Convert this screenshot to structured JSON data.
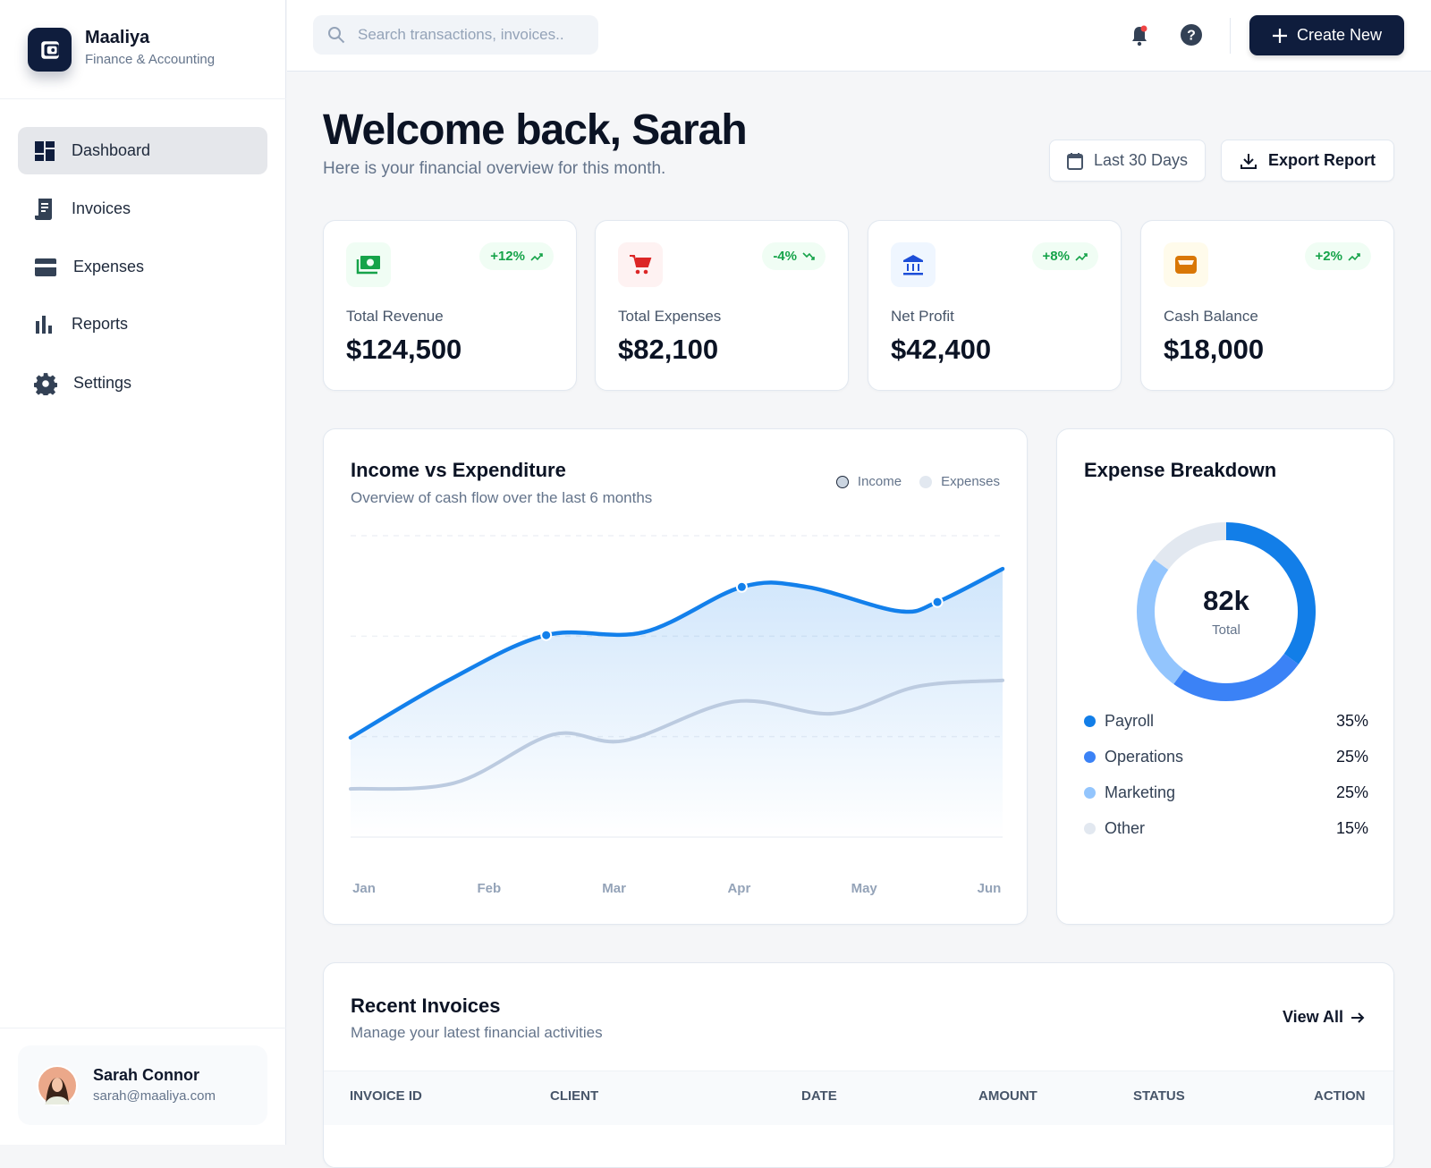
{
  "app": {
    "name": "Maaliya",
    "subtitle": "Finance & Accounting"
  },
  "sidebar": {
    "items": [
      {
        "label": "Dashboard",
        "icon": "dashboard-icon",
        "active": true
      },
      {
        "label": "Invoices",
        "icon": "receipt-icon"
      },
      {
        "label": "Expenses",
        "icon": "credit-card-icon"
      },
      {
        "label": "Reports",
        "icon": "bar-chart-icon"
      },
      {
        "label": "Settings",
        "icon": "gear-icon"
      }
    ]
  },
  "user": {
    "name": "Sarah Connor",
    "email": "sarah@maaliya.com"
  },
  "header": {
    "search_placeholder": "Search transactions, invoices..",
    "create_label": "Create New",
    "notification_dot": "#ef4444"
  },
  "page": {
    "title": "Welcome back, Sarah",
    "subtitle": "Here is your financial overview for this month.",
    "date_range": "Last 30 Days",
    "export_label": "Export Report"
  },
  "kpis": [
    {
      "label": "Total Revenue",
      "value": "$124,500",
      "change": "+12%",
      "trend": "up",
      "icon": "money-icon",
      "color": "#16a34a",
      "bg": "#f0fdf4"
    },
    {
      "label": "Total Expenses",
      "value": "$82,100",
      "change": "-4%",
      "trend": "down",
      "icon": "cart-icon",
      "color": "#dc2626",
      "bg": "#fef2f2"
    },
    {
      "label": "Net Profit",
      "value": "$42,400",
      "change": "+8%",
      "trend": "up",
      "icon": "bank-icon",
      "color": "#1d4ed8",
      "bg": "#eff6ff"
    },
    {
      "label": "Cash Balance",
      "value": "$18,000",
      "change": "+2%",
      "trend": "up",
      "icon": "wallet-icon",
      "color": "#d97706",
      "bg": "#fffbeb"
    }
  ],
  "chart_data": [
    {
      "type": "line",
      "title": "Income vs Expenditure",
      "subtitle": "Overview of cash flow over the last 6 months",
      "categories": [
        "Jan",
        "Feb",
        "Mar",
        "Apr",
        "May",
        "Jun"
      ],
      "grid": true,
      "legend": "top-right",
      "ylim": [
        0,
        100
      ],
      "series": [
        {
          "name": "Income",
          "color": "#1380eb",
          "fill": true,
          "points": [
            [
              0,
              33
            ],
            [
              0.75,
              52
            ],
            [
              1.5,
              67
            ],
            [
              2.25,
              68
            ],
            [
              3,
              83
            ],
            [
              3.5,
              83
            ],
            [
              4.2,
              75
            ],
            [
              4.5,
              78
            ],
            [
              5,
              89
            ]
          ],
          "markers": [
            1.5,
            3,
            4.5
          ]
        },
        {
          "name": "Expenses",
          "color": "#bccbe0",
          "points": [
            [
              0,
              16
            ],
            [
              0.8,
              18
            ],
            [
              1.55,
              34
            ],
            [
              2.1,
              32
            ],
            [
              2.95,
              45
            ],
            [
              3.7,
              41
            ],
            [
              4.35,
              50
            ],
            [
              5,
              52
            ]
          ]
        }
      ]
    },
    {
      "type": "pie",
      "title": "Expense Breakdown",
      "center_value": "82k",
      "center_label": "Total",
      "slices": [
        {
          "label": "Payroll",
          "value": 35,
          "display": "35%",
          "color": "#127ee8"
        },
        {
          "label": "Operations",
          "value": 25,
          "display": "25%",
          "color": "#3b82f6"
        },
        {
          "label": "Marketing",
          "value": 25,
          "display": "25%",
          "color": "#93c5fd"
        },
        {
          "label": "Other",
          "value": 15,
          "display": "15%",
          "color": "#e2e8f0"
        }
      ]
    }
  ],
  "invoices": {
    "title": "Recent Invoices",
    "subtitle": "Manage your latest financial activities",
    "view_all": "View All",
    "columns": [
      "INVOICE ID",
      "CLIENT",
      "DATE",
      "AMOUNT",
      "STATUS",
      "ACTION"
    ]
  }
}
